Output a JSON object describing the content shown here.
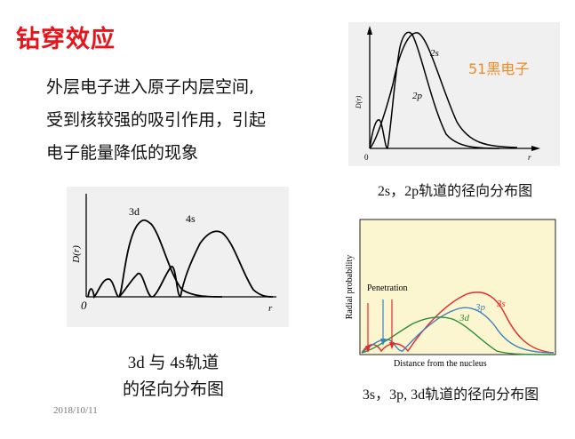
{
  "slide": {
    "title": "钻穿效应",
    "body_lines": [
      "外层电子进入原子内层空间,",
      "受到核较强的吸引作用，引起",
      "电子能量降低的现象"
    ],
    "date": "2018/10/11"
  },
  "figure_3d4s": {
    "caption_line1": "3d 与 4s轨道",
    "caption_line2": "的径向分布图",
    "ylabel": "D(r)",
    "xlabel": "r",
    "origin": "0",
    "label_3d": "3d",
    "label_4s": "4s"
  },
  "figure_2s2p": {
    "caption": "2s，2p轨道的径向分布图",
    "ylabel": "D(r)",
    "xlabel": "r",
    "origin": "0",
    "label_2s": "2s",
    "label_2p": "2p",
    "annotation": "51黑电子",
    "annotation_color": "#f08a24"
  },
  "figure_3s3p3d": {
    "caption": "3s，3p, 3d轨道的径向分布图",
    "ylabel": "Radial probability",
    "xlabel": "Distance from the nucleus",
    "penetration_label": "Penetration",
    "label_3s": "3s",
    "label_3p": "3p",
    "label_3d": "3d",
    "colors": {
      "3s": "#e8272a",
      "3p": "#3f7fbf",
      "3d": "#2e8b3a",
      "background": "#fbf6cf"
    }
  }
}
